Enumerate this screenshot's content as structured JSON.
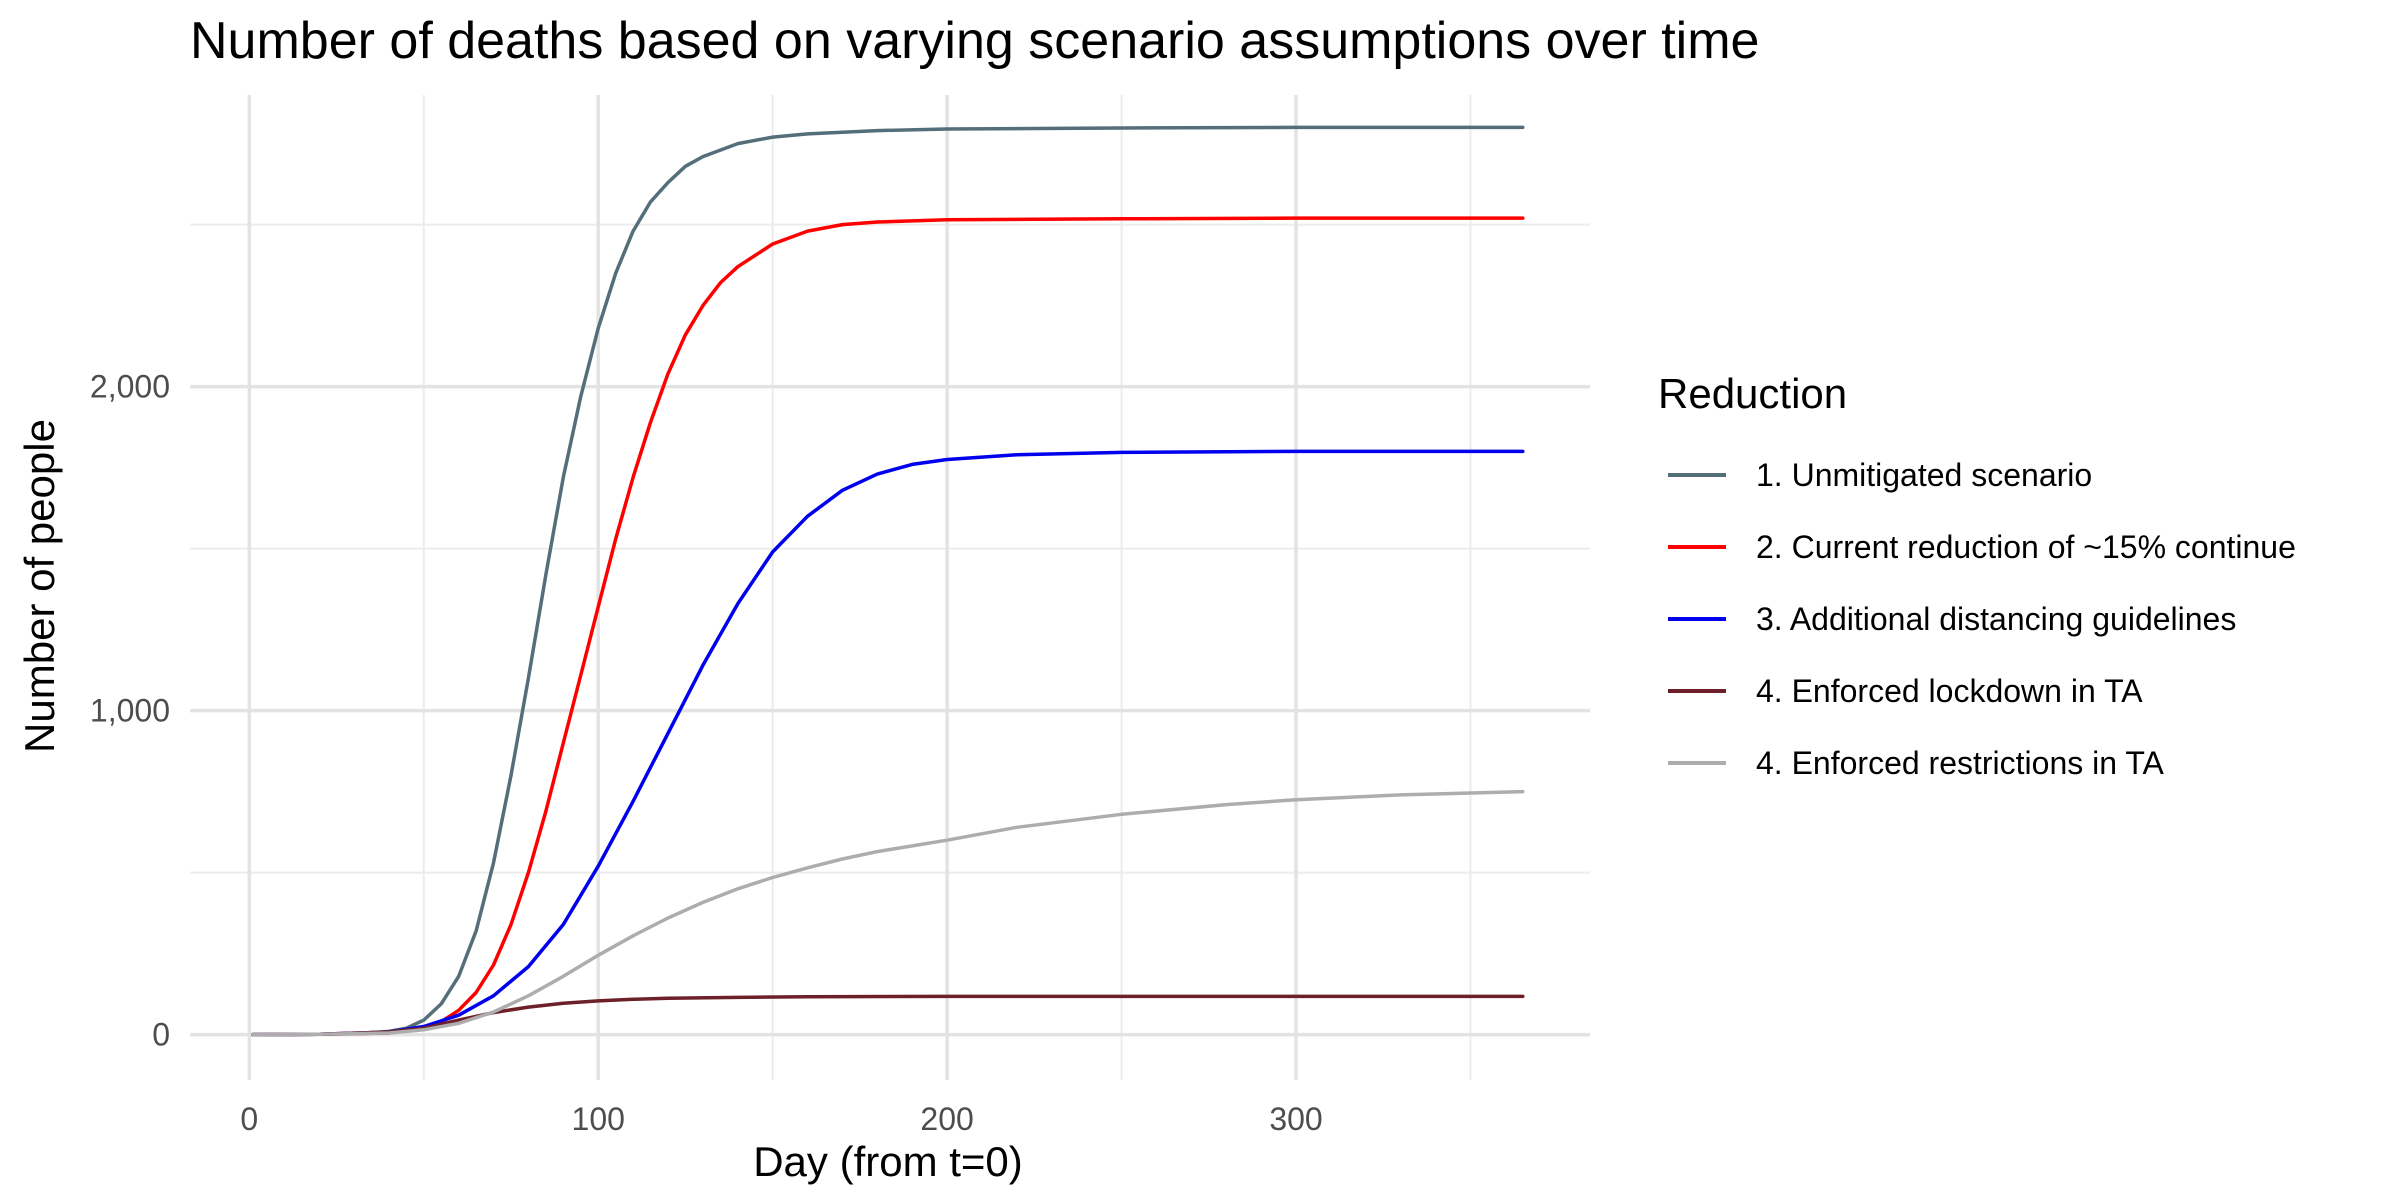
{
  "chart_data": {
    "type": "line",
    "title": "Number of deaths based on varying scenario assumptions over time",
    "xlabel": "Day (from t=0)",
    "ylabel": "Number of people",
    "xlim": [
      -17,
      365
    ],
    "ylim": [
      -140,
      2900
    ],
    "x_ticks": [
      0,
      100,
      200,
      300
    ],
    "x_tick_labels": [
      "0",
      "100",
      "200",
      "300"
    ],
    "y_ticks": [
      0,
      1000,
      2000
    ],
    "y_tick_labels": [
      "0",
      "1,000",
      "2,000"
    ],
    "grid": true,
    "legend_position": "right",
    "legend_title": "Reduction",
    "series": [
      {
        "name": "1. Unmitigated scenario",
        "color": "#546e7a",
        "x": [
          1,
          20,
          30,
          40,
          45,
          50,
          55,
          60,
          65,
          70,
          75,
          80,
          85,
          90,
          95,
          100,
          105,
          110,
          115,
          120,
          125,
          130,
          140,
          150,
          160,
          180,
          200,
          250,
          300,
          365
        ],
        "y": [
          0,
          1,
          3,
          10,
          20,
          45,
          95,
          180,
          320,
          530,
          800,
          1100,
          1420,
          1720,
          1970,
          2180,
          2350,
          2480,
          2570,
          2630,
          2680,
          2710,
          2750,
          2770,
          2780,
          2790,
          2795,
          2798,
          2800,
          2800
        ]
      },
      {
        "name": "2. Current reduction of ~15% continue",
        "color": "#ff0000",
        "x": [
          1,
          20,
          40,
          50,
          55,
          60,
          65,
          70,
          75,
          80,
          85,
          90,
          95,
          100,
          105,
          110,
          115,
          120,
          125,
          130,
          135,
          140,
          150,
          160,
          170,
          180,
          200,
          250,
          300,
          365
        ],
        "y": [
          0,
          1,
          5,
          20,
          40,
          75,
          130,
          215,
          340,
          500,
          690,
          900,
          1110,
          1320,
          1530,
          1720,
          1890,
          2040,
          2160,
          2250,
          2320,
          2370,
          2440,
          2480,
          2500,
          2508,
          2515,
          2518,
          2520,
          2520
        ]
      },
      {
        "name": "3. Additional distancing guidelines",
        "color": "#0000ee",
        "x": [
          1,
          20,
          40,
          50,
          60,
          70,
          80,
          90,
          100,
          110,
          120,
          130,
          140,
          150,
          160,
          170,
          180,
          190,
          200,
          220,
          250,
          300,
          365
        ],
        "y": [
          0,
          1,
          8,
          25,
          60,
          120,
          210,
          340,
          520,
          720,
          930,
          1140,
          1330,
          1490,
          1600,
          1680,
          1730,
          1760,
          1775,
          1790,
          1797,
          1800,
          1800
        ]
      },
      {
        "name": "4. Enforced lockdown in TA",
        "color": "#6d2028",
        "x": [
          1,
          20,
          40,
          50,
          60,
          70,
          80,
          90,
          100,
          110,
          120,
          140,
          160,
          200,
          250,
          300,
          365
        ],
        "y": [
          0,
          1,
          8,
          20,
          45,
          68,
          85,
          97,
          104,
          109,
          112,
          115,
          117,
          118,
          118,
          118,
          118
        ]
      },
      {
        "name": "4. Enforced restrictions in TA",
        "color": "#adadad",
        "x": [
          1,
          20,
          40,
          50,
          60,
          70,
          80,
          90,
          100,
          110,
          120,
          130,
          140,
          150,
          160,
          170,
          180,
          200,
          220,
          250,
          280,
          300,
          330,
          365
        ],
        "y": [
          0,
          1,
          5,
          15,
          35,
          70,
          120,
          180,
          245,
          305,
          360,
          408,
          450,
          485,
          515,
          542,
          565,
          600,
          640,
          680,
          710,
          725,
          740,
          750
        ]
      }
    ]
  }
}
